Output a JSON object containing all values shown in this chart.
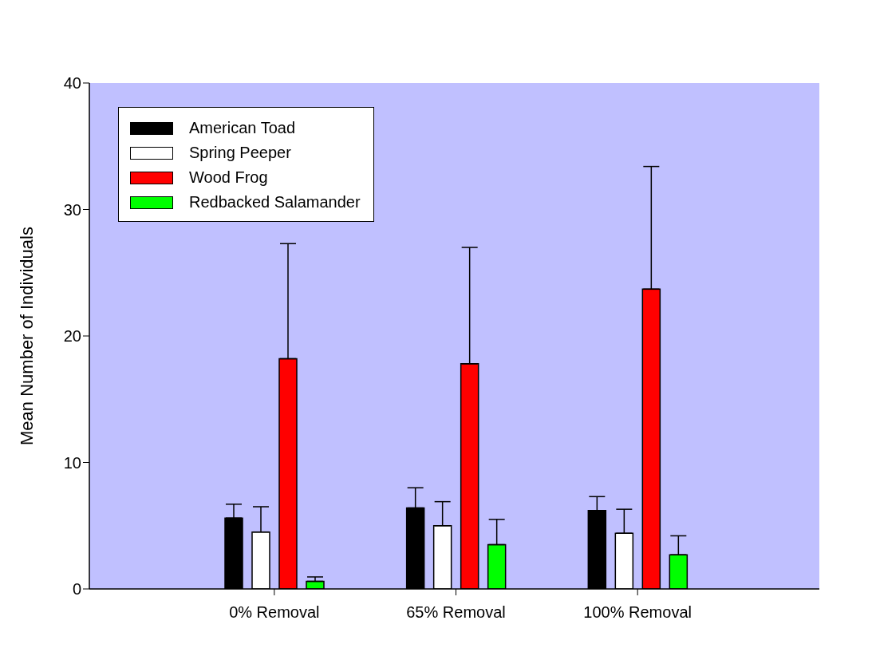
{
  "chart_data": {
    "type": "bar",
    "ylabel": "Mean Number of Individuals",
    "categories": [
      "0% Removal",
      "65% Removal",
      "100% Removal"
    ],
    "series": [
      {
        "name": "American Toad",
        "color": "#000000",
        "values": [
          5.6,
          6.4,
          6.2
        ],
        "errors": [
          [
            5.6,
            6.7
          ],
          [
            6.4,
            8.0
          ],
          [
            6.2,
            7.3
          ]
        ]
      },
      {
        "name": "Spring Peeper",
        "color": "#ffffff",
        "values": [
          4.5,
          5.0,
          4.4
        ],
        "errors": [
          [
            4.5,
            6.5
          ],
          [
            5.0,
            6.9
          ],
          [
            4.4,
            6.3
          ]
        ]
      },
      {
        "name": "Wood Frog",
        "color": "#ff0000",
        "values": [
          18.2,
          17.8,
          23.7
        ],
        "errors": [
          [
            18.2,
            27.3
          ],
          [
            17.8,
            27.0
          ],
          [
            23.7,
            33.4
          ]
        ]
      },
      {
        "name": "Redbacked Salamander",
        "color": "#00ff00",
        "values": [
          0.6,
          3.5,
          2.7
        ],
        "errors": [
          [
            0.6,
            0.95
          ],
          [
            3.5,
            5.5
          ],
          [
            2.7,
            4.2
          ]
        ]
      }
    ],
    "ylim": [
      0,
      40
    ],
    "yticks": [
      0,
      10,
      20,
      30,
      40
    ],
    "grid": false,
    "legend": "top left"
  }
}
